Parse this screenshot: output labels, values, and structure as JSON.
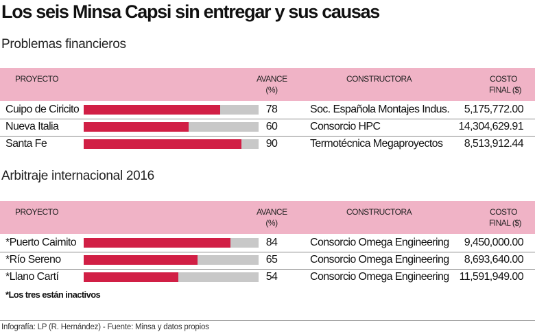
{
  "title": "Los seis Minsa Capsi sin entregar y sus causas",
  "headers": {
    "proyecto": "PROYECTO",
    "avance_1": "AVANCE",
    "avance_2": "(%)",
    "constructora": "CONSTRUCTORA",
    "costo_1": "COSTO",
    "costo_2": "FINAL ($)"
  },
  "colors": {
    "header_bg": "#f0b3c6",
    "bar_fill": "#d11f45",
    "bar_track": "#c8c8c8"
  },
  "chart_data": {
    "type": "table",
    "sections": [
      {
        "subtitle": "Problemas financieros",
        "rows": [
          {
            "proyecto": "Cuipo de Ciricito",
            "avance": 78,
            "avance_label": "78",
            "constructora": "Soc. Española Montajes Indus.",
            "costo": "5,175,772.00"
          },
          {
            "proyecto": "Nueva Italia",
            "avance": 60,
            "avance_label": "60",
            "constructora": "Consorcio HPC",
            "costo": "14,304,629.91"
          },
          {
            "proyecto": "Santa Fe",
            "avance": 90,
            "avance_label": "90",
            "constructora": "Termotécnica Megaproyectos",
            "costo": "8,513,912.44"
          }
        ]
      },
      {
        "subtitle": "Arbitraje internacional 2016",
        "rows": [
          {
            "proyecto": "*Puerto Caimito",
            "avance": 84,
            "avance_label": "84",
            "constructora": "Consorcio Omega Engineering",
            "costo": "9,450,000.00"
          },
          {
            "proyecto": "*Río Sereno",
            "avance": 65,
            "avance_label": "65",
            "constructora": "Consorcio Omega Engineering",
            "costo": "8,693,640.00"
          },
          {
            "proyecto": "*Llano Cartí",
            "avance": 54,
            "avance_label": "54",
            "constructora": "Consorcio Omega Engineering",
            "costo": "11,591,949.00"
          }
        ]
      }
    ],
    "bar_range": [
      0,
      100
    ]
  },
  "note": "*Los tres están inactivos",
  "footer": "Infografía: LP (R. Hernández) - Fuente: Minsa y datos propios"
}
